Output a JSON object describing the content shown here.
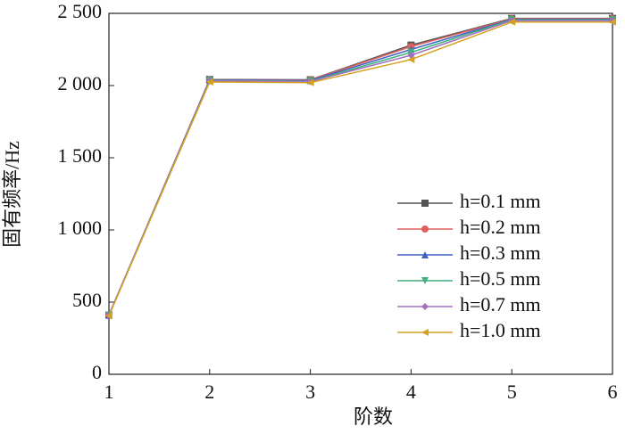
{
  "chart_data": {
    "type": "line",
    "x_label": "阶数",
    "y_label": "固有频率/Hz",
    "x": [
      1,
      2,
      3,
      4,
      5,
      6
    ],
    "xlim": [
      1,
      6
    ],
    "xticks": [
      1,
      2,
      3,
      4,
      5,
      6
    ],
    "ylim": [
      0,
      2500
    ],
    "yticks": [
      0,
      500,
      {
        "value": 1000,
        "label": "1 000"
      },
      {
        "value": 1500,
        "label": "1 500"
      },
      {
        "value": 2000,
        "label": "2 000"
      },
      {
        "value": 2500,
        "label": "2 500"
      }
    ],
    "legend": "right",
    "series": [
      {
        "name": "h=0.1 mm",
        "color": "#555555",
        "marker": "square",
        "values": [
          410,
          2042,
          2040,
          2280,
          2465,
          2465
        ]
      },
      {
        "name": "h=0.2 mm",
        "color": "#e06060",
        "marker": "circle",
        "values": [
          410,
          2040,
          2038,
          2270,
          2462,
          2462
        ]
      },
      {
        "name": "h=0.3 mm",
        "color": "#4060c0",
        "marker": "triangle-up",
        "values": [
          410,
          2038,
          2035,
          2250,
          2458,
          2458
        ]
      },
      {
        "name": "h=0.5 mm",
        "color": "#40b080",
        "marker": "triangle-down",
        "values": [
          408,
          2035,
          2030,
          2230,
          2455,
          2455
        ]
      },
      {
        "name": "h=0.7 mm",
        "color": "#a070c0",
        "marker": "diamond",
        "values": [
          408,
          2032,
          2028,
          2210,
          2450,
          2450
        ]
      },
      {
        "name": "h=1.0 mm",
        "color": "#d4a020",
        "marker": "triangle-left",
        "values": [
          405,
          2025,
          2020,
          2180,
          2440,
          2440
        ]
      }
    ]
  }
}
